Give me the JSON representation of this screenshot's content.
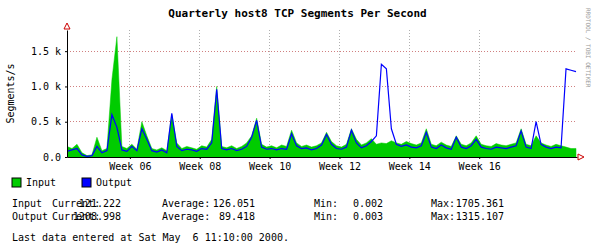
{
  "chart_data": {
    "type": "line",
    "title": "Quarterly host8 TCP Segments Per Second",
    "y_label": "Segments/s",
    "credit": "RRDTOOL / TOBI OETIKER",
    "legend": "bottom-left",
    "grid": true,
    "xlim": [
      4.7,
      19.3
    ],
    "ylim": [
      0,
      1800
    ],
    "xticks": [
      {
        "value": 6.5,
        "label": "Week 06"
      },
      {
        "value": 8.5,
        "label": "Week 08"
      },
      {
        "value": 10.5,
        "label": "Week 10"
      },
      {
        "value": 12.5,
        "label": "Week 12"
      },
      {
        "value": 14.5,
        "label": "Week 14"
      },
      {
        "value": 16.5,
        "label": "Week 16"
      }
    ],
    "yticks": [
      {
        "value": 0,
        "label": "0.0"
      },
      {
        "value": 500,
        "label": "0.5 k"
      },
      {
        "value": 1000,
        "label": "1.0 k"
      },
      {
        "value": 1500,
        "label": "1.5 k"
      }
    ],
    "x": [
      4.7,
      4.843,
      4.986,
      5.129,
      5.271,
      5.414,
      5.557,
      5.7,
      5.843,
      5.986,
      6.129,
      6.271,
      6.414,
      6.557,
      6.7,
      6.843,
      6.986,
      7.129,
      7.271,
      7.414,
      7.557,
      7.7,
      7.843,
      7.986,
      8.129,
      8.271,
      8.414,
      8.557,
      8.7,
      8.843,
      8.986,
      9.129,
      9.271,
      9.414,
      9.557,
      9.7,
      9.843,
      9.986,
      10.129,
      10.271,
      10.414,
      10.557,
      10.7,
      10.843,
      10.986,
      11.129,
      11.271,
      11.414,
      11.557,
      11.7,
      11.843,
      11.986,
      12.129,
      12.271,
      12.414,
      12.557,
      12.7,
      12.843,
      12.986,
      13.129,
      13.271,
      13.414,
      13.557,
      13.7,
      13.843,
      13.986,
      14.129,
      14.271,
      14.414,
      14.557,
      14.7,
      14.843,
      14.986,
      15.129,
      15.271,
      15.414,
      15.557,
      15.7,
      15.843,
      15.986,
      16.129,
      16.271,
      16.414,
      16.557,
      16.7,
      16.843,
      16.986,
      17.129,
      17.271,
      17.414,
      17.557,
      17.7,
      17.843,
      17.986,
      18.129,
      18.271,
      18.414,
      18.557,
      18.7,
      18.843,
      18.986,
      19.129,
      19.271
    ],
    "series": [
      {
        "name": "Input",
        "type": "area",
        "color": "#00cc00",
        "values": [
          150,
          120,
          180,
          60,
          20,
          30,
          280,
          90,
          120,
          1100,
          1705.361,
          150,
          120,
          180,
          110,
          500,
          300,
          120,
          100,
          130,
          90,
          600,
          200,
          120,
          150,
          130,
          110,
          160,
          140,
          250,
          1000,
          150,
          130,
          160,
          120,
          150,
          200,
          300,
          550,
          180,
          140,
          160,
          130,
          170,
          150,
          380,
          200,
          150,
          170,
          140,
          160,
          200,
          350,
          220,
          160,
          140,
          180,
          400,
          250,
          170,
          200,
          260,
          180,
          200,
          190,
          230,
          200,
          180,
          220,
          190,
          170,
          200,
          400,
          180,
          160,
          210,
          170,
          150,
          300,
          180,
          160,
          200,
          300,
          180,
          160,
          150,
          190,
          170,
          160,
          180,
          200,
          400,
          180,
          160,
          300,
          200,
          170,
          150,
          180,
          160,
          140,
          120,
          121.222
        ]
      },
      {
        "name": "Output",
        "type": "line",
        "color": "#0000ff",
        "values": [
          80,
          100,
          120,
          30,
          10,
          20,
          150,
          60,
          90,
          600,
          420,
          100,
          80,
          150,
          90,
          400,
          250,
          90,
          70,
          100,
          60,
          620,
          150,
          90,
          110,
          100,
          80,
          120,
          110,
          200,
          960,
          120,
          100,
          120,
          90,
          110,
          150,
          280,
          520,
          140,
          110,
          120,
          100,
          120,
          110,
          330,
          160,
          120,
          130,
          100,
          120,
          170,
          320,
          180,
          120,
          110,
          140,
          380,
          200,
          130,
          160,
          220,
          300,
          1315.107,
          1250,
          400,
          180,
          150,
          170,
          140,
          130,
          160,
          350,
          140,
          120,
          170,
          130,
          110,
          280,
          140,
          120,
          160,
          250,
          140,
          120,
          110,
          140,
          130,
          120,
          140,
          160,
          370,
          140,
          120,
          500,
          180,
          140,
          120,
          140,
          130,
          1250,
          1230,
          1208.998
        ]
      }
    ],
    "summary": {
      "labels": [
        "Current:",
        "Average:",
        "Min:",
        "Max:"
      ],
      "rows": [
        {
          "name": "Input",
          "values": [
            "121.222",
            "126.051",
            "0.002",
            "1705.361"
          ]
        },
        {
          "name": "Output",
          "values": [
            "1208.998",
            "89.418",
            "0.003",
            "1315.107"
          ]
        }
      ]
    },
    "footnote": "Last data entered at Sat May  6 11:10:00 2000."
  }
}
